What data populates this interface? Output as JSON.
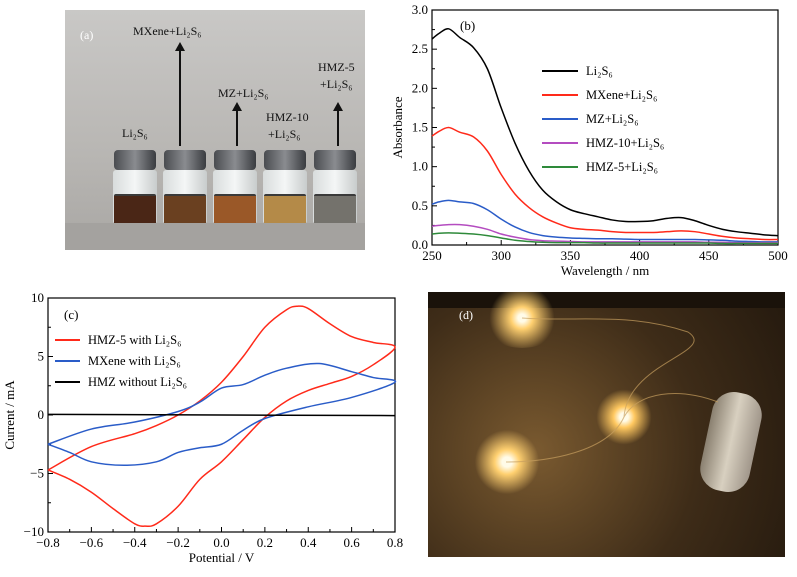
{
  "panel_a": {
    "label": "(a)",
    "vial_labels": [
      {
        "lines": [
          "Li₂S₆"
        ]
      },
      {
        "lines": [
          "MXene+Li₂S₆"
        ]
      },
      {
        "lines": [
          "MZ+Li₂S₆"
        ]
      },
      {
        "lines": [
          "HMZ-10",
          "+Li₂S₆"
        ]
      },
      {
        "lines": [
          "HMZ-5",
          "+Li₂S₆"
        ]
      }
    ],
    "liquid_colors": [
      "#4a2616",
      "#6a4020",
      "#9a5828",
      "#b48a48",
      "#74726c"
    ]
  },
  "panel_d": {
    "label": "(d)"
  },
  "chart_data": [
    {
      "panel_label": "(b)",
      "type": "line",
      "xlabel": "Wavelength / nm",
      "ylabel": "Absorbance",
      "xlim": [
        250,
        500
      ],
      "ylim": [
        0,
        3.0
      ],
      "xticks": [
        "250",
        "300",
        "350",
        "400",
        "450",
        "500"
      ],
      "yticks": [
        "0.0",
        "0.5",
        "1.0",
        "1.5",
        "2.0",
        "2.5",
        "3.0"
      ],
      "legend_position": "center-right",
      "x": [
        250,
        255,
        262,
        270,
        280,
        290,
        300,
        310,
        320,
        330,
        340,
        350,
        360,
        370,
        380,
        390,
        400,
        410,
        420,
        430,
        440,
        450,
        460,
        470,
        480,
        490,
        500
      ],
      "series": [
        {
          "name": "Li₂S₆",
          "color": "#000000",
          "values": [
            2.63,
            2.7,
            2.76,
            2.65,
            2.52,
            2.25,
            1.75,
            1.3,
            0.95,
            0.7,
            0.55,
            0.45,
            0.4,
            0.36,
            0.32,
            0.3,
            0.3,
            0.31,
            0.34,
            0.35,
            0.31,
            0.25,
            0.2,
            0.17,
            0.15,
            0.13,
            0.12
          ]
        },
        {
          "name": "MXene+Li₂S₆",
          "color": "#ff2a1a",
          "values": [
            1.39,
            1.45,
            1.5,
            1.44,
            1.38,
            1.2,
            0.9,
            0.65,
            0.48,
            0.36,
            0.28,
            0.22,
            0.2,
            0.19,
            0.17,
            0.16,
            0.16,
            0.16,
            0.17,
            0.18,
            0.17,
            0.14,
            0.11,
            0.09,
            0.08,
            0.07,
            0.07
          ]
        },
        {
          "name": "MZ+Li₂S₆",
          "color": "#2a5cc8",
          "values": [
            0.52,
            0.55,
            0.57,
            0.55,
            0.53,
            0.45,
            0.33,
            0.23,
            0.16,
            0.12,
            0.1,
            0.09,
            0.085,
            0.08,
            0.08,
            0.075,
            0.07,
            0.07,
            0.07,
            0.07,
            0.07,
            0.065,
            0.06,
            0.05,
            0.045,
            0.04,
            0.04
          ]
        },
        {
          "name": "HMZ-10+Li₂S₆",
          "color": "#b44cc0",
          "values": [
            0.24,
            0.25,
            0.26,
            0.26,
            0.24,
            0.2,
            0.14,
            0.1,
            0.07,
            0.055,
            0.05,
            0.045,
            0.04,
            0.04,
            0.04,
            0.04,
            0.04,
            0.04,
            0.04,
            0.04,
            0.04,
            0.035,
            0.035,
            0.03,
            0.03,
            0.03,
            0.03
          ]
        },
        {
          "name": "HMZ-5+Li₂S₆",
          "color": "#2e8a3a",
          "values": [
            0.14,
            0.15,
            0.155,
            0.15,
            0.14,
            0.12,
            0.09,
            0.06,
            0.045,
            0.035,
            0.03,
            0.03,
            0.03,
            0.025,
            0.025,
            0.025,
            0.025,
            0.025,
            0.025,
            0.025,
            0.025,
            0.025,
            0.02,
            0.02,
            0.02,
            0.02,
            0.02
          ]
        }
      ]
    },
    {
      "panel_label": "(c)",
      "type": "line",
      "xlabel": "Potential / V",
      "ylabel": "Current / mA",
      "xlim": [
        -0.8,
        0.8
      ],
      "ylim": [
        -10,
        10
      ],
      "xticks": [
        "−0.8",
        "−0.6",
        "−0.4",
        "−0.2",
        "0.0",
        "0.2",
        "0.4",
        "0.6",
        "0.8"
      ],
      "yticks": [
        "−10",
        "−5",
        "0",
        "5",
        "10"
      ],
      "legend_position": "top-left",
      "series": [
        {
          "name": "HMZ-5 with Li₂S₆",
          "color": "#ff2a1a",
          "x": [
            -0.8,
            -0.6,
            -0.4,
            -0.3,
            -0.2,
            -0.1,
            0,
            0.1,
            0.2,
            0.3,
            0.35,
            0.4,
            0.5,
            0.6,
            0.7,
            0.8,
            0.7,
            0.6,
            0.5,
            0.4,
            0.3,
            0.2,
            0.1,
            0,
            -0.1,
            -0.2,
            -0.3,
            -0.35,
            -0.4,
            -0.5,
            -0.6,
            -0.7,
            -0.8
          ],
          "y": [
            -4.7,
            -2.7,
            -1.6,
            -0.9,
            0,
            1.2,
            2.8,
            5,
            7.5,
            9.0,
            9.3,
            9.1,
            7.8,
            6.7,
            6.2,
            5.8,
            4.3,
            3.3,
            2.7,
            2.1,
            1.2,
            -0.2,
            -2.1,
            -4,
            -5.5,
            -7.8,
            -9.3,
            -9.5,
            -9.3,
            -8.0,
            -6.6,
            -5.5,
            -4.7
          ]
        },
        {
          "name": "MXene with Li₂S₆",
          "color": "#2a5cc8",
          "x": [
            -0.8,
            -0.6,
            -0.4,
            -0.2,
            -0.1,
            0,
            0.1,
            0.2,
            0.3,
            0.45,
            0.6,
            0.7,
            0.8,
            0.6,
            0.4,
            0.2,
            0.1,
            0,
            -0.1,
            -0.2,
            -0.3,
            -0.45,
            -0.6,
            -0.7,
            -0.8
          ],
          "y": [
            -2.5,
            -1.2,
            -0.6,
            0.3,
            1.1,
            2.3,
            2.6,
            3.4,
            4.0,
            4.4,
            3.7,
            3.2,
            2.8,
            1.5,
            0.7,
            -0.3,
            -1.3,
            -2.5,
            -2.8,
            -3.2,
            -4.0,
            -4.3,
            -4.0,
            -3.2,
            -2.5
          ]
        },
        {
          "name": "HMZ without Li₂S₆",
          "color": "#000000",
          "x": [
            -0.8,
            0,
            0.8
          ],
          "y": [
            0.05,
            0,
            -0.05
          ]
        }
      ]
    }
  ]
}
